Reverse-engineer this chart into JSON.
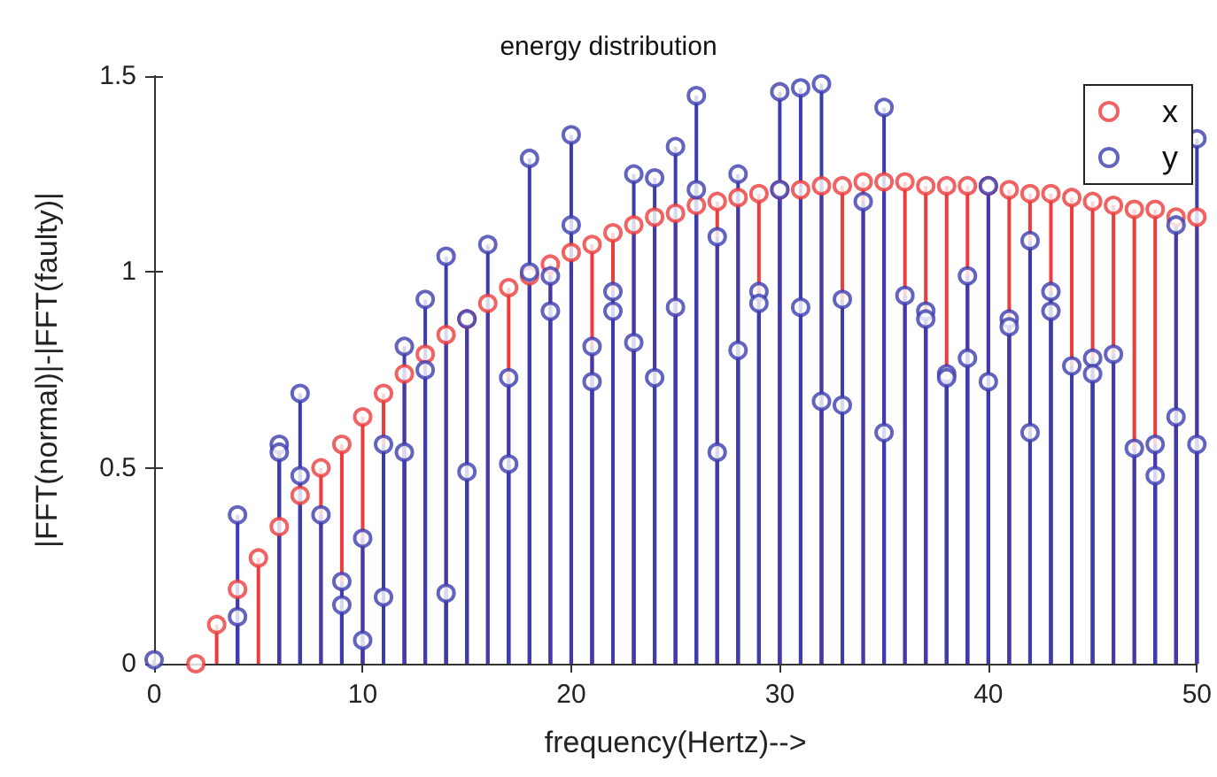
{
  "chart_data": {
    "type": "lollipop",
    "title": "energy distribution",
    "xlabel": "frequency(Hertz)-->",
    "ylabel": "|FFT(normal)|-|FFT(faulty)|",
    "x": [
      0,
      1,
      2,
      3,
      4,
      5,
      6,
      7,
      8,
      9,
      10,
      11,
      12,
      13,
      14,
      15,
      16,
      17,
      18,
      19,
      20,
      21,
      22,
      23,
      24,
      25,
      26,
      27,
      28,
      29,
      30,
      31,
      32,
      33,
      34,
      35,
      36,
      37,
      38,
      39,
      40,
      41,
      42,
      43,
      44,
      45,
      46,
      47,
      48,
      49,
      50
    ],
    "series": [
      {
        "name": "x",
        "color": "#ee3b3b",
        "values": [
          null,
          null,
          0.0,
          0.1,
          0.19,
          0.27,
          0.35,
          0.43,
          0.5,
          0.56,
          0.63,
          0.69,
          0.74,
          0.79,
          0.84,
          0.88,
          0.92,
          0.96,
          0.99,
          1.02,
          1.05,
          1.07,
          1.1,
          1.12,
          1.14,
          1.15,
          1.17,
          1.18,
          1.19,
          1.2,
          1.21,
          1.21,
          1.22,
          1.22,
          1.23,
          1.23,
          1.23,
          1.22,
          1.22,
          1.22,
          1.22,
          1.21,
          1.2,
          1.2,
          1.19,
          1.18,
          1.17,
          1.16,
          1.16,
          1.14,
          1.14
        ]
      },
      {
        "name": "y",
        "color": "#3c3cb0",
        "values": [
          0.01,
          null,
          null,
          null,
          0.38,
          null,
          0.56,
          0.69,
          0.38,
          0.21,
          0.32,
          0.56,
          0.81,
          0.93,
          1.04,
          0.88,
          1.07,
          0.73,
          1.29,
          0.99,
          1.35,
          0.81,
          0.95,
          1.25,
          1.24,
          1.32,
          1.45,
          1.09,
          1.25,
          0.95,
          1.46,
          1.47,
          1.48,
          0.93,
          null,
          1.42,
          null,
          0.9,
          0.74,
          0.99,
          1.22,
          0.88,
          1.08,
          0.95,
          0.76,
          0.78,
          null,
          null,
          0.56,
          1.12,
          1.34
        ]
      },
      {
        "color": "#3c3cb0",
        "values": [
          null,
          null,
          null,
          null,
          0.12,
          null,
          0.54,
          0.48,
          null,
          0.15,
          0.06,
          0.17,
          0.54,
          0.75,
          0.18,
          0.49,
          null,
          0.51,
          1.0,
          0.9,
          1.12,
          0.72,
          0.9,
          0.82,
          0.73,
          0.91,
          1.21,
          0.54,
          0.8,
          0.92,
          1.21,
          0.91,
          0.67,
          0.66,
          1.18,
          0.59,
          0.94,
          0.88,
          0.73,
          0.78,
          0.72,
          0.86,
          0.59,
          0.9,
          null,
          0.74,
          0.79,
          0.55,
          0.48,
          0.63,
          0.56
        ]
      }
    ],
    "xlim": [
      0,
      50
    ],
    "xticks": [
      0,
      10,
      20,
      30,
      40,
      50
    ],
    "ylim": [
      0,
      1.5
    ],
    "yticks": [
      0,
      0.5,
      1,
      1.5
    ],
    "legend": "top right",
    "marker": "circle",
    "grid": false
  }
}
